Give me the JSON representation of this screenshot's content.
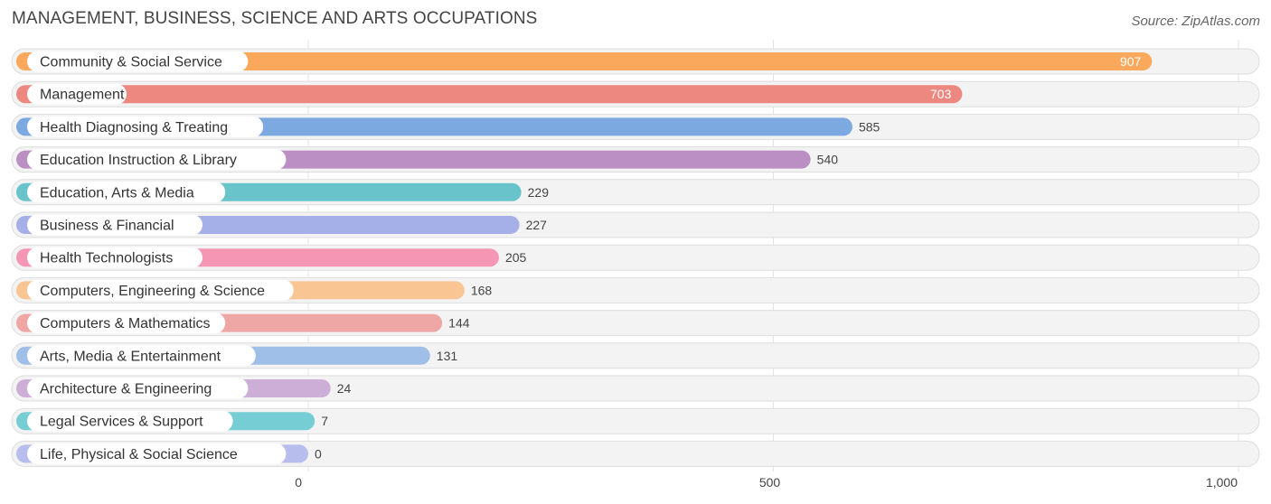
{
  "chart_data": {
    "type": "bar",
    "orientation": "horizontal",
    "title": "MANAGEMENT, BUSINESS, SCIENCE AND ARTS OCCUPATIONS",
    "source": "Source: ZipAtlas.com",
    "categories": [
      "Community & Social Service",
      "Management",
      "Health Diagnosing & Treating",
      "Education Instruction & Library",
      "Education, Arts & Media",
      "Business & Financial",
      "Health Technologists",
      "Computers, Engineering & Science",
      "Computers & Mathematics",
      "Arts, Media & Entertainment",
      "Architecture & Engineering",
      "Legal Services & Support",
      "Life, Physical & Social Science"
    ],
    "values": [
      907,
      703,
      585,
      540,
      229,
      227,
      205,
      168,
      144,
      131,
      24,
      7,
      0
    ],
    "value_labels": [
      "907",
      "703",
      "585",
      "540",
      "229",
      "227",
      "205",
      "168",
      "144",
      "131",
      "24",
      "7",
      "0"
    ],
    "colors": [
      "#f9a85c",
      "#ec8880",
      "#7ba9e0",
      "#bb8fc4",
      "#68c3cb",
      "#a5afe8",
      "#f596b4",
      "#f9c592",
      "#efa7a5",
      "#9fbfe9",
      "#cdaed6",
      "#76cdd3",
      "#b7bdec"
    ],
    "xlim": [
      0,
      1000
    ],
    "x_ticks": [
      0,
      500,
      1000
    ],
    "x_tick_labels": [
      "0",
      "500",
      "1,000"
    ],
    "grid": true
  }
}
